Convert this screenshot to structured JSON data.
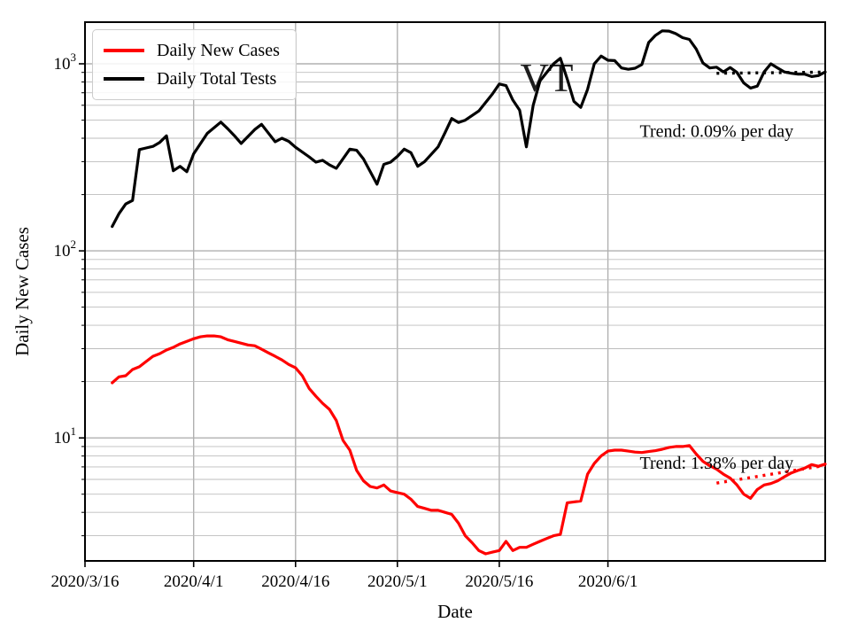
{
  "figure": {
    "background": "#ffffff",
    "watermark": {
      "text": "VT",
      "x_date": "2020/5/23",
      "y_value": 850
    },
    "legend": {
      "items": [
        {
          "label": "Daily New Cases",
          "color": "#ff0000"
        },
        {
          "label": "Daily Total Tests",
          "color": "#000000"
        }
      ]
    },
    "annotations": [
      {
        "text": "Trend: 0.09% per day",
        "x_date": "2020/6/17",
        "y_value": 440
      },
      {
        "text": "Trend: 1.38% per day",
        "x_date": "2020/6/17",
        "y_value": 7.4
      }
    ],
    "colors": {
      "cases": "#ff0000",
      "tests": "#000000",
      "grid": "#b0b0b0",
      "axis": "#000000"
    }
  },
  "chart_data": {
    "type": "line",
    "xlabel": "Date",
    "ylabel": "Daily New Cases",
    "yscale": "log",
    "ylim": [
      2.2,
      1670
    ],
    "grid": true,
    "legend_position": "upper left",
    "x_start_date": "2020/3/16",
    "x_ticks": [
      "2020/3/16",
      "2020/4/1",
      "2020/4/16",
      "2020/5/1",
      "2020/5/16",
      "2020/6/1"
    ],
    "y_ticks": [
      10,
      100,
      1000
    ],
    "y_tick_labels": [
      [
        "10",
        "1"
      ],
      [
        "10",
        "2"
      ],
      [
        "10",
        "3"
      ]
    ],
    "series": [
      {
        "name": "Daily New Cases",
        "color": "#ff0000",
        "style": "solid",
        "points": [
          [
            "2020/3/20",
            19.7
          ],
          [
            "2020/3/21",
            21.2
          ],
          [
            "2020/3/22",
            21.5
          ],
          [
            "2020/3/23",
            23.2
          ],
          [
            "2020/3/24",
            24.0
          ],
          [
            "2020/3/25",
            25.6
          ],
          [
            "2020/3/26",
            27.3
          ],
          [
            "2020/3/27",
            28.2
          ],
          [
            "2020/3/28",
            29.5
          ],
          [
            "2020/3/29",
            30.5
          ],
          [
            "2020/3/30",
            31.8
          ],
          [
            "2020/3/31",
            32.8
          ],
          [
            "2020/4/1",
            33.9
          ],
          [
            "2020/4/2",
            34.7
          ],
          [
            "2020/4/3",
            35.1
          ],
          [
            "2020/4/4",
            35.1
          ],
          [
            "2020/4/5",
            34.7
          ],
          [
            "2020/4/6",
            33.5
          ],
          [
            "2020/4/7",
            32.8
          ],
          [
            "2020/4/8",
            32.1
          ],
          [
            "2020/4/9",
            31.4
          ],
          [
            "2020/4/10",
            31.1
          ],
          [
            "2020/4/11",
            29.8
          ],
          [
            "2020/4/12",
            28.5
          ],
          [
            "2020/4/13",
            27.3
          ],
          [
            "2020/4/14",
            26.1
          ],
          [
            "2020/4/15",
            24.7
          ],
          [
            "2020/4/16",
            23.7
          ],
          [
            "2020/4/17",
            21.5
          ],
          [
            "2020/4/18",
            18.4
          ],
          [
            "2020/4/19",
            16.7
          ],
          [
            "2020/4/20",
            15.3
          ],
          [
            "2020/4/21",
            14.2
          ],
          [
            "2020/4/22",
            12.4
          ],
          [
            "2020/4/23",
            9.7
          ],
          [
            "2020/4/24",
            8.6
          ],
          [
            "2020/4/25",
            6.7
          ],
          [
            "2020/4/26",
            5.9
          ],
          [
            "2020/4/27",
            5.5
          ],
          [
            "2020/4/28",
            5.4
          ],
          [
            "2020/4/29",
            5.6
          ],
          [
            "2020/4/30",
            5.2
          ],
          [
            "2020/5/1",
            5.1
          ],
          [
            "2020/5/2",
            5.0
          ],
          [
            "2020/5/3",
            4.7
          ],
          [
            "2020/5/4",
            4.3
          ],
          [
            "2020/5/5",
            4.2
          ],
          [
            "2020/5/6",
            4.1
          ],
          [
            "2020/5/7",
            4.1
          ],
          [
            "2020/5/8",
            4.0
          ],
          [
            "2020/5/9",
            3.9
          ],
          [
            "2020/5/10",
            3.5
          ],
          [
            "2020/5/11",
            3.0
          ],
          [
            "2020/5/12",
            2.75
          ],
          [
            "2020/5/13",
            2.5
          ],
          [
            "2020/5/14",
            2.4
          ],
          [
            "2020/5/15",
            2.45
          ],
          [
            "2020/5/16",
            2.5
          ],
          [
            "2020/5/17",
            2.8
          ],
          [
            "2020/5/18",
            2.5
          ],
          [
            "2020/5/19",
            2.6
          ],
          [
            "2020/5/20",
            2.6
          ],
          [
            "2020/5/21",
            2.7
          ],
          [
            "2020/5/22",
            2.8
          ],
          [
            "2020/5/23",
            2.9
          ],
          [
            "2020/5/24",
            3.0
          ],
          [
            "2020/5/25",
            3.05
          ],
          [
            "2020/5/26",
            4.5
          ],
          [
            "2020/5/27",
            4.55
          ],
          [
            "2020/5/28",
            4.6
          ],
          [
            "2020/5/29",
            6.4
          ],
          [
            "2020/5/30",
            7.3
          ],
          [
            "2020/5/31",
            8.0
          ],
          [
            "2020/6/1",
            8.5
          ],
          [
            "2020/6/2",
            8.6
          ],
          [
            "2020/6/3",
            8.6
          ],
          [
            "2020/6/4",
            8.5
          ],
          [
            "2020/6/5",
            8.4
          ],
          [
            "2020/6/6",
            8.35
          ],
          [
            "2020/6/7",
            8.45
          ],
          [
            "2020/6/8",
            8.55
          ],
          [
            "2020/6/9",
            8.7
          ],
          [
            "2020/6/10",
            8.9
          ],
          [
            "2020/6/11",
            9.0
          ],
          [
            "2020/6/12",
            9.0
          ],
          [
            "2020/6/13",
            9.1
          ],
          [
            "2020/6/14",
            8.2
          ],
          [
            "2020/6/15",
            7.5
          ],
          [
            "2020/6/16",
            7.1
          ],
          [
            "2020/6/17",
            6.8
          ],
          [
            "2020/6/18",
            6.4
          ],
          [
            "2020/6/19",
            6.1
          ],
          [
            "2020/6/20",
            5.6
          ],
          [
            "2020/6/21",
            5.0
          ],
          [
            "2020/6/22",
            4.75
          ],
          [
            "2020/6/23",
            5.3
          ],
          [
            "2020/6/24",
            5.6
          ],
          [
            "2020/6/25",
            5.7
          ],
          [
            "2020/6/26",
            5.9
          ],
          [
            "2020/6/27",
            6.2
          ],
          [
            "2020/6/28",
            6.5
          ],
          [
            "2020/6/29",
            6.7
          ],
          [
            "2020/6/30",
            6.9
          ],
          [
            "2020/7/1",
            7.2
          ],
          [
            "2020/7/2",
            7.05
          ],
          [
            "2020/7/3",
            7.25
          ]
        ]
      },
      {
        "name": "Daily Total Tests",
        "color": "#000000",
        "style": "solid",
        "points": [
          [
            "2020/3/20",
            135
          ],
          [
            "2020/3/21",
            158
          ],
          [
            "2020/3/22",
            178
          ],
          [
            "2020/3/23",
            186
          ],
          [
            "2020/3/24",
            348
          ],
          [
            "2020/3/25",
            355
          ],
          [
            "2020/3/26",
            362
          ],
          [
            "2020/3/27",
            380
          ],
          [
            "2020/3/28",
            412
          ],
          [
            "2020/3/29",
            268
          ],
          [
            "2020/3/30",
            283
          ],
          [
            "2020/3/31",
            265
          ],
          [
            "2020/4/1",
            330
          ],
          [
            "2020/4/3",
            425
          ],
          [
            "2020/4/5",
            488
          ],
          [
            "2020/4/6",
            450
          ],
          [
            "2020/4/7",
            413
          ],
          [
            "2020/4/8",
            375
          ],
          [
            "2020/4/10",
            445
          ],
          [
            "2020/4/11",
            475
          ],
          [
            "2020/4/13",
            383
          ],
          [
            "2020/4/14",
            400
          ],
          [
            "2020/4/15",
            385
          ],
          [
            "2020/4/16",
            358
          ],
          [
            "2020/4/18",
            318
          ],
          [
            "2020/4/19",
            298
          ],
          [
            "2020/4/20",
            305
          ],
          [
            "2020/4/21",
            288
          ],
          [
            "2020/4/22",
            276
          ],
          [
            "2020/4/24",
            350
          ],
          [
            "2020/4/25",
            345
          ],
          [
            "2020/4/26",
            310
          ],
          [
            "2020/4/28",
            227
          ],
          [
            "2020/4/29",
            290
          ],
          [
            "2020/4/30",
            298
          ],
          [
            "2020/5/1",
            320
          ],
          [
            "2020/5/2",
            350
          ],
          [
            "2020/5/3",
            335
          ],
          [
            "2020/5/4",
            283
          ],
          [
            "2020/5/5",
            300
          ],
          [
            "2020/5/7",
            360
          ],
          [
            "2020/5/8",
            427
          ],
          [
            "2020/5/9",
            510
          ],
          [
            "2020/5/10",
            485
          ],
          [
            "2020/5/11",
            500
          ],
          [
            "2020/5/13",
            560
          ],
          [
            "2020/5/15",
            690
          ],
          [
            "2020/5/16",
            780
          ],
          [
            "2020/5/17",
            765
          ],
          [
            "2020/5/18",
            640
          ],
          [
            "2020/5/19",
            565
          ],
          [
            "2020/5/20",
            360
          ],
          [
            "2020/5/21",
            600
          ],
          [
            "2020/5/22",
            810
          ],
          [
            "2020/5/23",
            900
          ],
          [
            "2020/5/24",
            1000
          ],
          [
            "2020/5/25",
            1070
          ],
          [
            "2020/5/26",
            830
          ],
          [
            "2020/5/27",
            630
          ],
          [
            "2020/5/28",
            585
          ],
          [
            "2020/5/29",
            730
          ],
          [
            "2020/5/30",
            1000
          ],
          [
            "2020/5/31",
            1100
          ],
          [
            "2020/6/1",
            1045
          ],
          [
            "2020/6/2",
            1040
          ],
          [
            "2020/6/3",
            950
          ],
          [
            "2020/6/4",
            935
          ],
          [
            "2020/6/5",
            947
          ],
          [
            "2020/6/6",
            990
          ],
          [
            "2020/6/7",
            1300
          ],
          [
            "2020/6/8",
            1420
          ],
          [
            "2020/6/9",
            1500
          ],
          [
            "2020/6/10",
            1495
          ],
          [
            "2020/6/11",
            1450
          ],
          [
            "2020/6/12",
            1380
          ],
          [
            "2020/6/13",
            1350
          ],
          [
            "2020/6/14",
            1200
          ],
          [
            "2020/6/15",
            1010
          ],
          [
            "2020/6/16",
            950
          ],
          [
            "2020/6/17",
            960
          ],
          [
            "2020/6/18",
            905
          ],
          [
            "2020/6/19",
            955
          ],
          [
            "2020/6/20",
            900
          ],
          [
            "2020/6/21",
            790
          ],
          [
            "2020/6/22",
            742
          ],
          [
            "2020/6/23",
            760
          ],
          [
            "2020/6/24",
            905
          ],
          [
            "2020/6/25",
            1000
          ],
          [
            "2020/6/26",
            950
          ],
          [
            "2020/6/27",
            905
          ],
          [
            "2020/6/28",
            890
          ],
          [
            "2020/6/29",
            880
          ],
          [
            "2020/6/30",
            880
          ],
          [
            "2020/7/1",
            855
          ],
          [
            "2020/7/2",
            865
          ],
          [
            "2020/7/3",
            905
          ]
        ]
      },
      {
        "name": "Cases trend 1.38% per day",
        "color": "#ff0000",
        "style": "dotted",
        "points": [
          [
            "2020/6/17",
            5.73
          ],
          [
            "2020/7/3",
            7.13
          ]
        ]
      },
      {
        "name": "Tests trend 0.09% per day",
        "color": "#000000",
        "style": "dotted",
        "points": [
          [
            "2020/6/17",
            890
          ],
          [
            "2020/7/3",
            903
          ]
        ]
      }
    ]
  }
}
